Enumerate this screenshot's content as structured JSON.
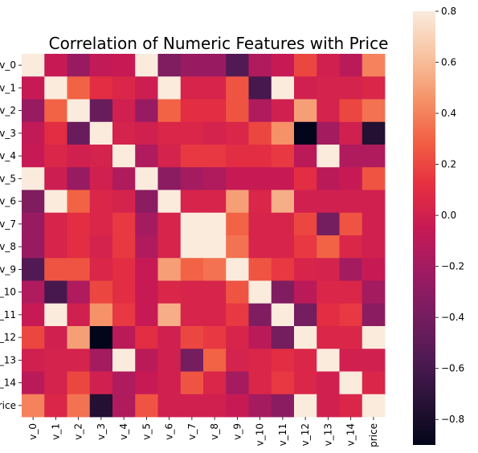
{
  "chart_data": {
    "type": "heatmap",
    "title": "Correlation of Numeric Features with Price",
    "xlabel": "",
    "ylabel": "",
    "categories": [
      "v_0",
      "v_1",
      "v_2",
      "v_3",
      "v_4",
      "v_5",
      "v_6",
      "v_7",
      "v_8",
      "v_9",
      "v_10",
      "v_11",
      "v_12",
      "v_13",
      "v_14",
      "price"
    ],
    "matrix": [
      [
        1.0,
        -0.05,
        -0.25,
        -0.07,
        -0.05,
        0.95,
        -0.35,
        -0.25,
        -0.25,
        -0.55,
        -0.15,
        -0.05,
        0.2,
        0.0,
        -0.1,
        0.4
      ],
      [
        -0.05,
        1.0,
        0.3,
        0.1,
        0.05,
        -0.02,
        0.9,
        0.03,
        0.03,
        0.25,
        -0.6,
        0.97,
        0.0,
        0.02,
        0.02,
        0.05
      ],
      [
        -0.25,
        0.3,
        1.0,
        -0.45,
        0.0,
        -0.25,
        0.3,
        0.1,
        0.1,
        0.25,
        -0.15,
        0.0,
        0.5,
        0.02,
        0.2,
        0.35
      ],
      [
        -0.07,
        0.1,
        -0.45,
        1.0,
        0.02,
        0.0,
        0.05,
        0.05,
        0.02,
        0.05,
        0.2,
        0.45,
        -0.9,
        -0.2,
        0.0,
        -0.75
      ],
      [
        -0.05,
        0.05,
        0.0,
        0.02,
        1.0,
        -0.15,
        0.02,
        0.15,
        0.15,
        0.1,
        0.1,
        0.15,
        -0.1,
        0.97,
        -0.15,
        -0.15
      ],
      [
        0.95,
        -0.02,
        -0.25,
        0.0,
        -0.15,
        1.0,
        -0.3,
        -0.2,
        -0.15,
        -0.05,
        -0.05,
        -0.05,
        0.1,
        -0.1,
        -0.05,
        0.25
      ],
      [
        -0.35,
        0.9,
        0.3,
        0.05,
        0.02,
        -0.3,
        1.0,
        0.03,
        0.03,
        0.5,
        0.05,
        0.55,
        0.0,
        0.0,
        0.0,
        0.0
      ],
      [
        -0.25,
        0.03,
        0.1,
        0.05,
        0.15,
        -0.2,
        0.03,
        1.0,
        0.99,
        0.3,
        0.03,
        0.03,
        0.2,
        -0.4,
        0.25,
        0.0
      ],
      [
        -0.25,
        0.03,
        0.1,
        0.02,
        0.15,
        -0.15,
        0.03,
        0.99,
        1.0,
        0.35,
        0.03,
        0.03,
        0.15,
        0.3,
        0.05,
        0.0
      ],
      [
        -0.55,
        0.25,
        0.25,
        0.05,
        0.1,
        -0.05,
        0.5,
        0.3,
        0.35,
        1.0,
        0.25,
        0.15,
        0.03,
        0.02,
        -0.2,
        -0.05
      ],
      [
        -0.15,
        -0.6,
        -0.15,
        0.2,
        0.1,
        -0.05,
        0.05,
        0.03,
        0.03,
        0.25,
        1.0,
        -0.35,
        -0.1,
        0.05,
        0.05,
        -0.2
      ],
      [
        -0.05,
        0.97,
        0.0,
        0.45,
        0.15,
        -0.05,
        0.55,
        0.03,
        0.03,
        0.15,
        -0.35,
        1.0,
        -0.4,
        0.1,
        0.15,
        -0.3
      ],
      [
        0.2,
        0.0,
        0.5,
        -0.9,
        -0.1,
        0.1,
        0.0,
        0.2,
        0.15,
        0.03,
        -0.1,
        -0.4,
        1.0,
        0.05,
        0.05,
        0.95
      ],
      [
        0.0,
        0.02,
        0.02,
        -0.2,
        0.97,
        -0.1,
        0.0,
        -0.4,
        0.3,
        0.02,
        0.05,
        0.1,
        0.05,
        1.0,
        0.0,
        0.0
      ],
      [
        -0.1,
        0.02,
        0.2,
        0.0,
        -0.15,
        -0.05,
        0.0,
        0.25,
        0.05,
        -0.2,
        0.05,
        0.15,
        0.05,
        0.0,
        1.0,
        0.05
      ],
      [
        0.4,
        0.05,
        0.35,
        -0.75,
        -0.15,
        0.25,
        0.0,
        0.0,
        0.0,
        -0.05,
        -0.2,
        -0.3,
        0.95,
        0.0,
        0.05,
        1.0
      ]
    ],
    "vmin": -0.9,
    "vmax": 0.8,
    "colormap": "rocket",
    "colorbar_ticks": [
      -0.8,
      -0.6,
      -0.4,
      -0.2,
      0.0,
      0.2,
      0.4,
      0.6,
      0.8
    ],
    "colorbar_tick_labels": [
      "−0.8",
      "−0.6",
      "−0.4",
      "−0.2",
      "0.0",
      "0.2",
      "0.4",
      "0.6",
      "0.8"
    ],
    "grid": false,
    "legend": "colorbar-right"
  }
}
